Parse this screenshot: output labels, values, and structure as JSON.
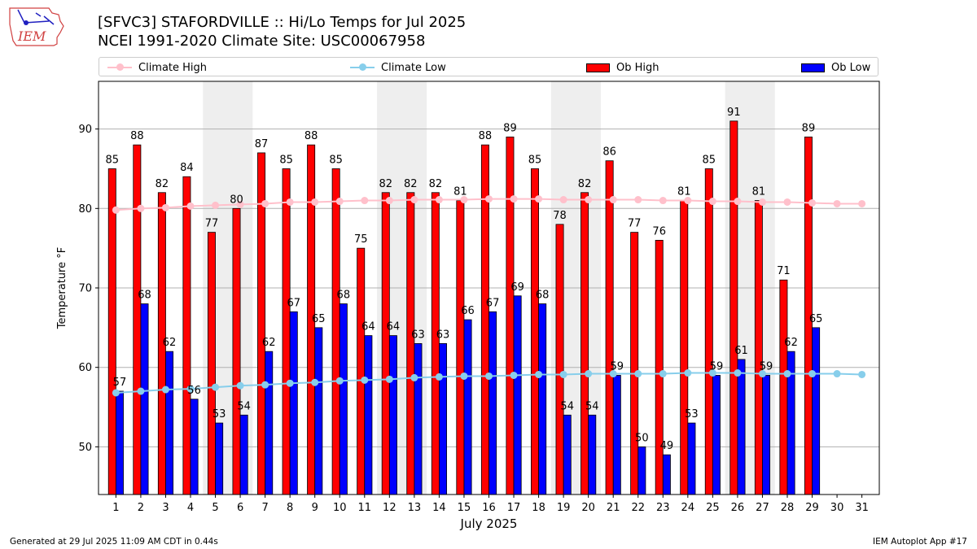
{
  "header": {
    "logo_text": "IEM",
    "title_line1": "[SFVC3] STAFORDVILLE :: Hi/Lo Temps for Jul 2025",
    "title_line2": "NCEI 1991-2020 Climate Site: USC00067958"
  },
  "legend": {
    "climate_high": "Climate High",
    "climate_low": "Climate Low",
    "ob_high": "Ob High",
    "ob_low": "Ob Low"
  },
  "footer": {
    "generated": "Generated at 29 Jul 2025 11:09 AM CDT in 0.44s",
    "app": "IEM Autoplot App #17"
  },
  "colors": {
    "ob_high": "#ff0000",
    "ob_low": "#0000ff",
    "climate_high": "#ffc0cb",
    "climate_low": "#87ceeb",
    "weekend_shade": "#eeeeee",
    "grid": "#b0b0b0"
  },
  "chart_data": {
    "type": "bar",
    "xlabel": "July 2025",
    "ylabel": "Temperature °F",
    "ylim": [
      44,
      96
    ],
    "yticks": [
      50,
      60,
      70,
      80,
      90
    ],
    "grid": "horizontal",
    "legend_placement": "top",
    "weekend_shading": [
      [
        5,
        6
      ],
      [
        12,
        13
      ],
      [
        19,
        20
      ],
      [
        26,
        27
      ]
    ],
    "x": [
      1,
      2,
      3,
      4,
      5,
      6,
      7,
      8,
      9,
      10,
      11,
      12,
      13,
      14,
      15,
      16,
      17,
      18,
      19,
      20,
      21,
      22,
      23,
      24,
      25,
      26,
      27,
      28,
      29,
      30,
      31
    ],
    "series": [
      {
        "name": "Ob High",
        "kind": "bar",
        "values": [
          85,
          88,
          82,
          84,
          77,
          80,
          87,
          85,
          88,
          85,
          75,
          82,
          82,
          82,
          81,
          88,
          89,
          85,
          78,
          82,
          86,
          77,
          76,
          81,
          85,
          91,
          81,
          71,
          89,
          null,
          null
        ]
      },
      {
        "name": "Ob Low",
        "kind": "bar",
        "values": [
          57,
          68,
          62,
          56,
          53,
          54,
          62,
          67,
          65,
          68,
          64,
          64,
          63,
          63,
          66,
          67,
          69,
          68,
          54,
          54,
          59,
          50,
          49,
          53,
          59,
          61,
          59,
          62,
          65,
          null,
          null
        ]
      },
      {
        "name": "Climate High",
        "kind": "line",
        "values": [
          79.8,
          80.0,
          80.1,
          80.3,
          80.4,
          80.5,
          80.6,
          80.8,
          80.8,
          80.9,
          81.0,
          81.0,
          81.1,
          81.1,
          81.1,
          81.2,
          81.2,
          81.2,
          81.1,
          81.1,
          81.1,
          81.1,
          81.0,
          81.0,
          80.9,
          80.9,
          80.8,
          80.8,
          80.7,
          80.6,
          80.6
        ]
      },
      {
        "name": "Climate Low",
        "kind": "line",
        "values": [
          56.8,
          57.0,
          57.2,
          57.3,
          57.5,
          57.7,
          57.8,
          58.0,
          58.1,
          58.3,
          58.4,
          58.5,
          58.7,
          58.8,
          58.9,
          58.9,
          59.0,
          59.1,
          59.1,
          59.2,
          59.2,
          59.2,
          59.2,
          59.3,
          59.3,
          59.3,
          59.2,
          59.2,
          59.2,
          59.2,
          59.1
        ]
      }
    ]
  }
}
